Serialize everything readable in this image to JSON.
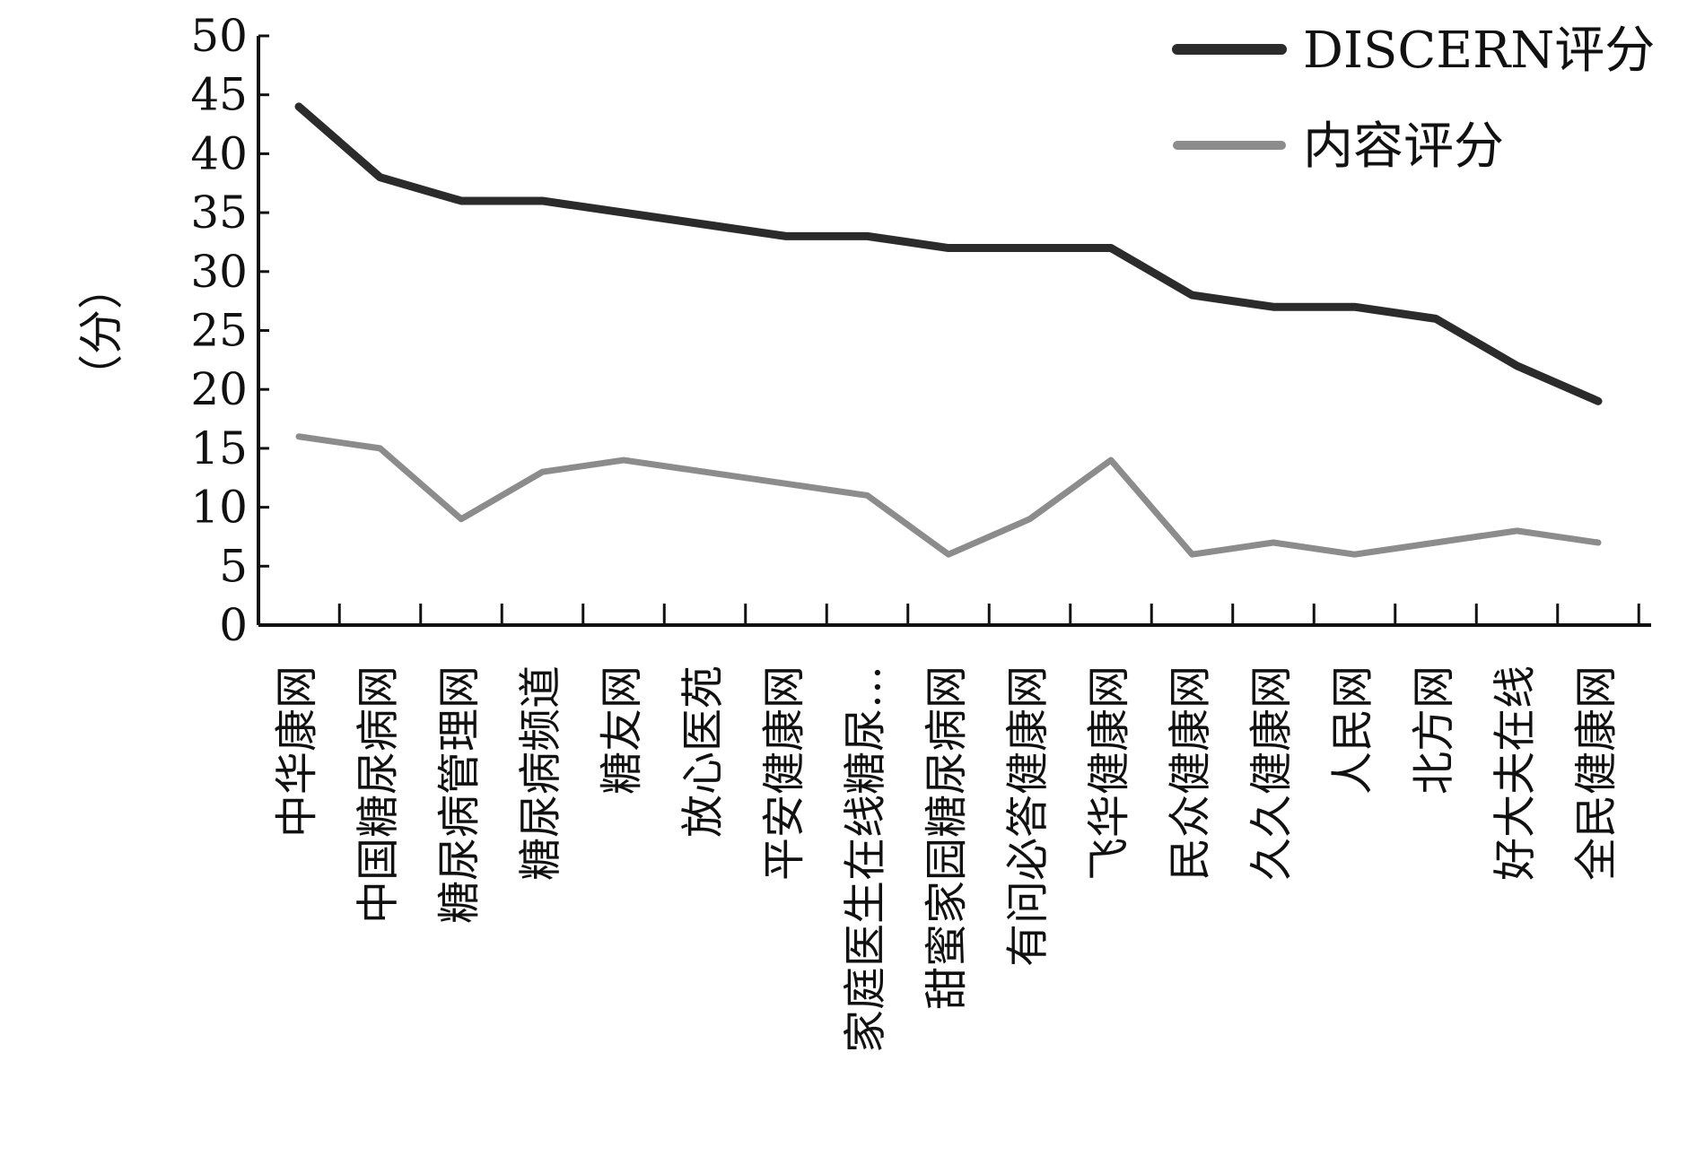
{
  "chart_data": {
    "type": "line",
    "title": "",
    "xlabel": "",
    "ylabel": "（分）",
    "ylim": [
      0,
      50
    ],
    "yticks": [
      0,
      5,
      10,
      15,
      20,
      25,
      30,
      35,
      40,
      45,
      50
    ],
    "grid": false,
    "legend_position": "top-right",
    "categories": [
      "中华康网",
      "中国糖尿病网",
      "糖尿病管理网",
      "糖尿病频道",
      "糖友网",
      "放心医苑",
      "平安健康网",
      "家庭医生在线糖尿…",
      "甜蜜家园糖尿病网",
      "有问必答健康网",
      "飞华健康网",
      "民众健康网",
      "久久健康网",
      "人民网",
      "北方网",
      "好大夫在线",
      "全民健康网"
    ],
    "series": [
      {
        "name": "DISCERN评分",
        "color": "#2b2b2b",
        "values": [
          44,
          38,
          36,
          36,
          35,
          34,
          33,
          33,
          32,
          32,
          32,
          28,
          27,
          27,
          26,
          22,
          19
        ]
      },
      {
        "name": "内容评分",
        "color": "#8c8c8c",
        "values": [
          16,
          15,
          9,
          13,
          14,
          13,
          12,
          11,
          6,
          9,
          14,
          6,
          7,
          6,
          7,
          8,
          7
        ]
      }
    ]
  }
}
